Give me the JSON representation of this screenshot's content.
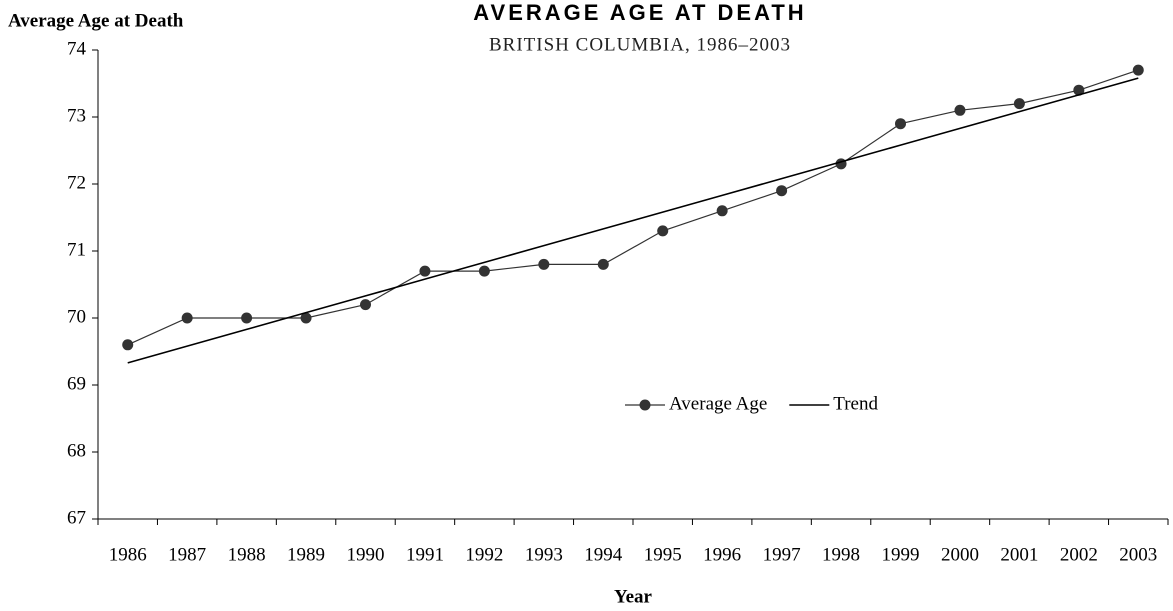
{
  "chart_data": {
    "type": "line",
    "title": "AVERAGE AGE AT DEATH",
    "subtitle": "BRITISH COLUMBIA, 1986–2003",
    "y_label": "Average Age at Death",
    "x_label": "Year",
    "categories": [
      "1986",
      "1987",
      "1988",
      "1989",
      "1990",
      "1991",
      "1992",
      "1993",
      "1994",
      "1995",
      "1996",
      "1997",
      "1998",
      "1999",
      "2000",
      "2001",
      "2002",
      "2003"
    ],
    "series": [
      {
        "name": "Average Age",
        "color": "#333333",
        "marker": true,
        "values": [
          69.6,
          70,
          70,
          70,
          70.2,
          70.7,
          70.7,
          70.8,
          70.8,
          71.3,
          71.6,
          71.9,
          72.3,
          72.9,
          73.1,
          73.2,
          73.4,
          73.7
        ]
      },
      {
        "name": "Trend",
        "color": "#000000",
        "marker": false,
        "values": [
          69.33,
          69.58,
          69.83,
          70.08,
          70.33,
          70.58,
          70.83,
          71.08,
          71.33,
          71.58,
          71.83,
          72.08,
          72.33,
          72.58,
          72.83,
          73.08,
          73.33,
          73.58
        ]
      }
    ],
    "ylim": [
      67,
      74
    ],
    "yticks": [
      67,
      68,
      69,
      70,
      71,
      72,
      73,
      74
    ],
    "grid": false
  }
}
